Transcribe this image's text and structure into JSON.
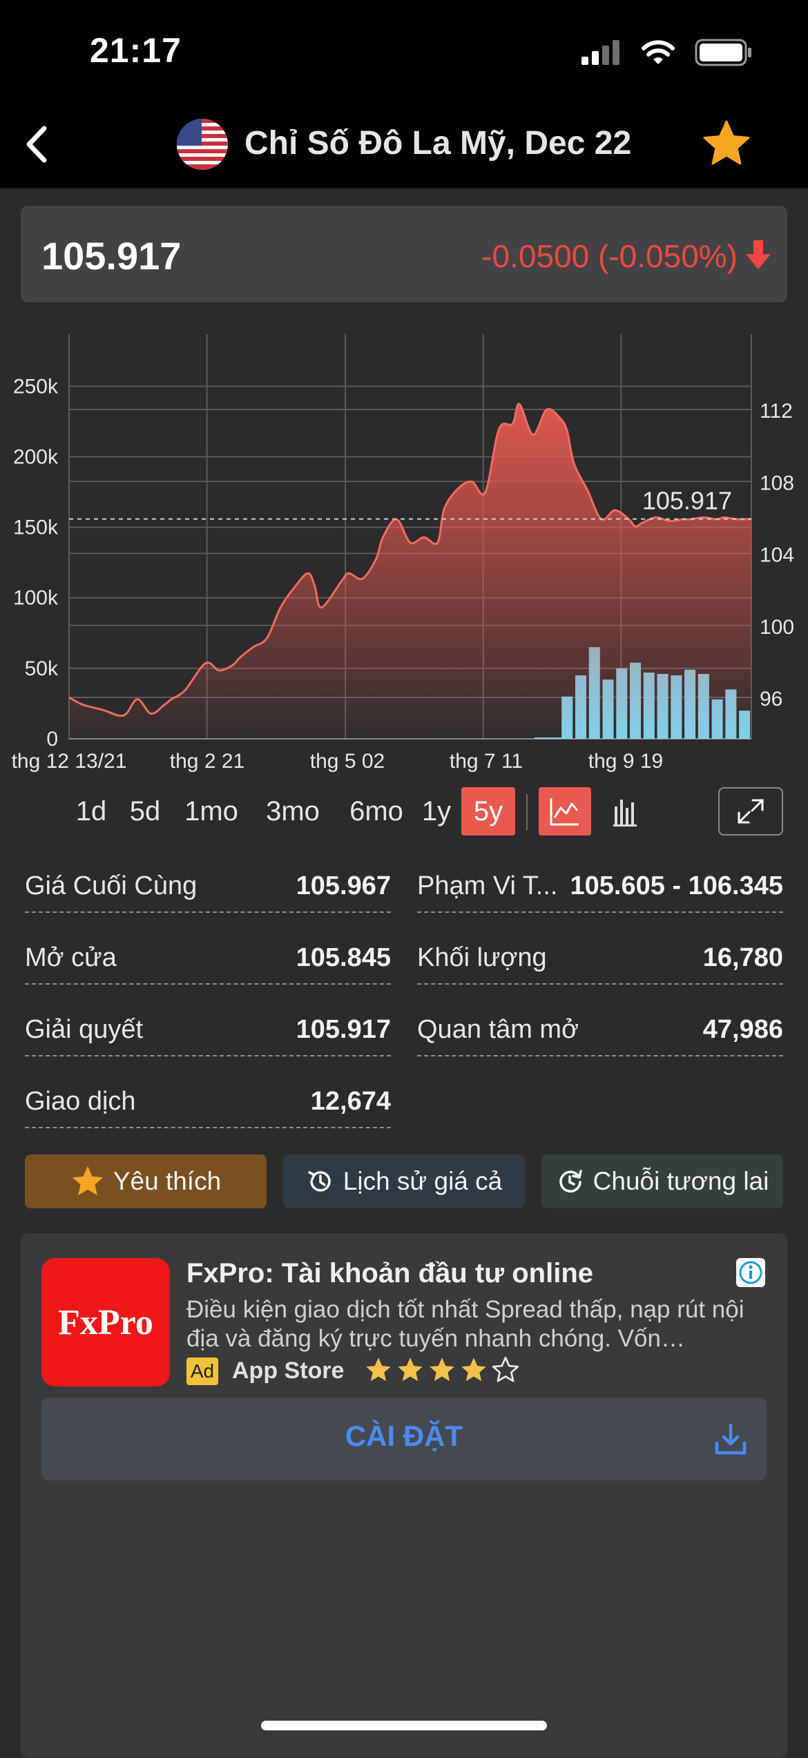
{
  "status_bar": {
    "time": "21:17"
  },
  "header": {
    "title": "Chỉ Số Đô La Mỹ, Dec 22"
  },
  "quote": {
    "price": "105.917",
    "change": "-0.0500 (-0.050%)"
  },
  "colors": {
    "accent": "#e85a4f",
    "negative": "#f0483e",
    "volume": "#7fd3ee",
    "favorite": "#f5a623",
    "install": "#4a8bf0"
  },
  "chart_data": {
    "type": "area",
    "x_ticks": [
      "thg 12 13/21",
      "thg 2 21",
      "thg 5 02",
      "thg 7 11",
      "thg 9 19"
    ],
    "y_right_ticks": [
      "112",
      "108",
      "104",
      "100",
      "96"
    ],
    "y_left_ticks": [
      "250k",
      "200k",
      "150k",
      "100k",
      "50k",
      "0"
    ],
    "price_ylim": [
      93.7,
      115.8
    ],
    "volume_ylim": [
      0,
      282000
    ],
    "last_value": 105.917,
    "last_label": "105.917",
    "price_series": {
      "x": [
        0,
        0.02,
        0.05,
        0.08,
        0.1,
        0.12,
        0.14,
        0.15,
        0.17,
        0.2,
        0.22,
        0.24,
        0.25,
        0.27,
        0.29,
        0.31,
        0.33,
        0.35,
        0.36,
        0.37,
        0.4,
        0.41,
        0.43,
        0.45,
        0.46,
        0.48,
        0.5,
        0.52,
        0.54,
        0.55,
        0.57,
        0.59,
        0.61,
        0.63,
        0.65,
        0.66,
        0.68,
        0.7,
        0.72,
        0.73,
        0.74,
        0.76,
        0.78,
        0.8,
        0.82,
        0.83,
        0.84,
        0.86,
        0.88,
        0.9,
        0.91,
        0.93,
        0.95,
        0.96,
        0.98,
        1
      ],
      "y": [
        96.0,
        95.6,
        95.3,
        95.0,
        95.9,
        95.1,
        95.6,
        95.9,
        96.4,
        97.9,
        97.5,
        97.8,
        98.2,
        98.8,
        99.3,
        101.0,
        102.1,
        102.9,
        102.2,
        101.0,
        102.5,
        102.9,
        102.6,
        103.7,
        104.9,
        105.9,
        104.6,
        104.9,
        104.6,
        106.5,
        107.6,
        108.0,
        107.4,
        110.9,
        111.2,
        112.3,
        110.6,
        112.0,
        111.5,
        110.8,
        109.0,
        107.5,
        105.9,
        106.4,
        105.917,
        105.5,
        105.7,
        106.0,
        105.8,
        105.9,
        105.9,
        106.0,
        105.9,
        106.0,
        105.9,
        105.917
      ]
    },
    "volume_series": {
      "x": [
        0.73,
        0.75,
        0.77,
        0.79,
        0.81,
        0.83,
        0.85,
        0.87,
        0.89,
        0.91,
        0.93,
        0.95,
        0.97,
        0.99
      ],
      "y": [
        30000,
        45000,
        65000,
        42000,
        50000,
        54000,
        47000,
        46000,
        45000,
        49000,
        46000,
        28000,
        35000,
        20000
      ]
    },
    "volume_trickle": [
      0.69,
      0.7,
      0.71,
      0.72
    ]
  },
  "ranges": [
    "1d",
    "5d",
    "1mo",
    "3mo",
    "6mo",
    "1y",
    "5y"
  ],
  "active_range": "5y",
  "stats": {
    "last_price": {
      "label": "Giá Cuối Cùng",
      "value": "105.967"
    },
    "day_range": {
      "label": "Phạm Vi T...",
      "value": "105.605 - 106.345"
    },
    "open": {
      "label": "Mở cửa",
      "value": "105.845"
    },
    "volume": {
      "label": "Khối lượng",
      "value": "16,780"
    },
    "settle": {
      "label": "Giải quyết",
      "value": "105.917"
    },
    "open_interest": {
      "label": "Quan tâm mở",
      "value": "47,986"
    },
    "trades": {
      "label": "Giao dịch",
      "value": "12,674"
    }
  },
  "actions": {
    "favorite": "Yêu thích",
    "history": "Lịch sử giá cả",
    "futures_chain": "Chuỗi tương lai"
  },
  "ad": {
    "logo": "FxPro",
    "title": "FxPro: Tài khoản đầu tư online",
    "description": "Điều kiện giao dịch tốt nhất Spread thấp, nạp rút nội địa và đăng ký trực tuyến nhanh chóng. Vốn…",
    "badge": "Ad",
    "store": "App Store",
    "rating": 4,
    "rating_max": 5,
    "install_label": "CÀI ĐẶT"
  }
}
